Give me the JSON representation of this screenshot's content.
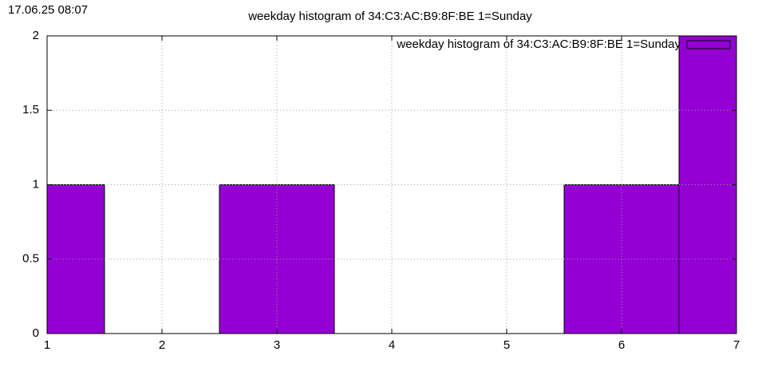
{
  "chart_data": {
    "type": "bar",
    "title": "weekday histogram of 34:C3:AC:B9:8F:BE 1=Sunday",
    "timestamp": "17.06.25 08:07",
    "x": [
      1,
      2,
      3,
      4,
      5,
      6,
      7
    ],
    "series": [
      {
        "name": "weekday histogram of 34:C3:AC:B9:8F:BE 1=Sunday",
        "color": "#9400d3",
        "values": [
          1,
          0,
          1,
          0,
          0,
          1,
          2
        ]
      }
    ],
    "xlim": [
      1,
      7
    ],
    "xticks": [
      1,
      2,
      3,
      4,
      5,
      6,
      7
    ],
    "ylim": [
      0,
      2
    ],
    "yticks": [
      0,
      0.5,
      1,
      1.5,
      2
    ],
    "grid": true,
    "legend": "top right"
  }
}
